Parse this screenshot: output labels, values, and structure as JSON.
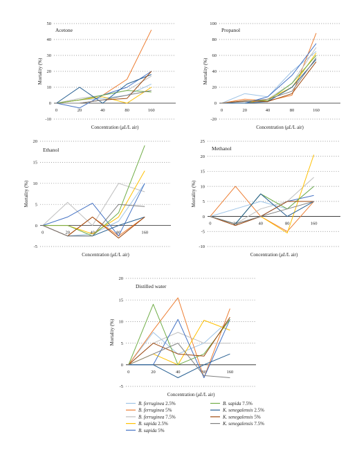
{
  "x_ticks": [
    0,
    20,
    40,
    80,
    160
  ],
  "colors": {
    "bf25": "#9dc3e6",
    "bf5": "#ed7d31",
    "bf75": "#bfbfbf",
    "bs25": "#ffc000",
    "bs5": "#4472c4",
    "bs75": "#70ad47",
    "ks25": "#255e91",
    "ks5": "#9e480e",
    "ks75": "#7f7f7f"
  },
  "legend": [
    {
      "key": "bf25",
      "name": "B. ferruginea",
      "dose": " 2.5%"
    },
    {
      "key": "bf5",
      "name": "B. ferruginea",
      "dose": " 5%"
    },
    {
      "key": "bf75",
      "name": "B. ferruginea",
      "dose": " 7.5%"
    },
    {
      "key": "bs25",
      "name": "B. sapida",
      "dose": " 2.5%"
    },
    {
      "key": "bs5",
      "name": "B. sapida",
      "dose": " 5%"
    },
    {
      "key": "bs75",
      "name": "B. sapida",
      "dose": " 7.5%"
    },
    {
      "key": "ks25",
      "name": "K. senegalensis",
      "dose": " 2.5%"
    },
    {
      "key": "ks5",
      "name": "K. senegalensis",
      "dose": " 5%"
    },
    {
      "key": "ks75",
      "name": "K. senegalensis",
      "dose": " 7.5%"
    }
  ],
  "chart_data": [
    {
      "type": "line",
      "title": "Acetone",
      "xlabel_pre": "Concentration (",
      "xlabel_unit": "μL",
      "xlabel_post": "/L air)",
      "ylabel": "Mortality (%)",
      "ylim": [
        -10,
        50
      ],
      "yticks": [
        -10,
        0,
        10,
        20,
        30,
        40,
        50
      ],
      "x": [
        0,
        20,
        40,
        80,
        160
      ],
      "series": [
        {
          "key": "bf25",
          "values": [
            0,
            2,
            3,
            5,
            12
          ]
        },
        {
          "key": "bf5",
          "values": [
            0,
            2,
            5,
            15,
            46
          ]
        },
        {
          "key": "bf75",
          "values": [
            0,
            3,
            5,
            8,
            17
          ]
        },
        {
          "key": "bs25",
          "values": [
            0,
            2,
            4,
            0,
            10
          ]
        },
        {
          "key": "bs5",
          "values": [
            0,
            -3,
            5,
            10,
            20
          ]
        },
        {
          "key": "bs75",
          "values": [
            0,
            2,
            5,
            8,
            7
          ]
        },
        {
          "key": "ks25",
          "values": [
            0,
            10,
            0,
            12,
            18
          ]
        },
        {
          "key": "ks5",
          "values": [
            0,
            0,
            2,
            3,
            20
          ]
        },
        {
          "key": "ks75",
          "values": [
            0,
            0,
            2,
            5,
            8
          ]
        }
      ]
    },
    {
      "type": "line",
      "title": "Propanol",
      "xlabel_pre": "Concentration (",
      "xlabel_unit": "μL",
      "xlabel_post": "/L air)",
      "ylabel": "Mortality (%)",
      "ylim": [
        -20,
        100
      ],
      "yticks": [
        -20,
        0,
        20,
        40,
        60,
        80,
        100
      ],
      "x": [
        0,
        20,
        40,
        80,
        160
      ],
      "series": [
        {
          "key": "bf25",
          "values": [
            0,
            12,
            8,
            40,
            65
          ]
        },
        {
          "key": "bf5",
          "values": [
            0,
            5,
            3,
            10,
            88
          ]
        },
        {
          "key": "bf75",
          "values": [
            0,
            0,
            5,
            25,
            70
          ]
        },
        {
          "key": "bs25",
          "values": [
            0,
            0,
            5,
            20,
            63
          ]
        },
        {
          "key": "bs5",
          "values": [
            0,
            0,
            8,
            35,
            75
          ]
        },
        {
          "key": "bs75",
          "values": [
            0,
            3,
            3,
            25,
            60
          ]
        },
        {
          "key": "ks25",
          "values": [
            0,
            0,
            2,
            20,
            55
          ]
        },
        {
          "key": "ks5",
          "values": [
            0,
            3,
            2,
            12,
            52
          ]
        },
        {
          "key": "ks75",
          "values": [
            0,
            2,
            5,
            15,
            57
          ]
        }
      ]
    },
    {
      "type": "line",
      "title": "Ethanol",
      "xlabel_pre": "Concentration (",
      "xlabel_unit": "μL",
      "xlabel_post": "/L air)",
      "ylabel": "Mortality (%)",
      "ylim": [
        -5,
        20
      ],
      "yticks": [
        -5,
        0,
        5,
        10,
        15,
        20
      ],
      "x": [
        0,
        20,
        40,
        80,
        160
      ],
      "series": [
        {
          "key": "bf25",
          "values": [
            0,
            -2.5,
            -2,
            1,
            10
          ]
        },
        {
          "key": "bf5",
          "values": [
            0,
            -2.5,
            2,
            -2.5,
            2
          ]
        },
        {
          "key": "bf75",
          "values": [
            0,
            5.5,
            0,
            10,
            8
          ]
        },
        {
          "key": "bs25",
          "values": [
            0,
            0,
            -2,
            2,
            13
          ]
        },
        {
          "key": "bs5",
          "values": [
            0,
            2,
            5.3,
            -2.5,
            10
          ]
        },
        {
          "key": "bs75",
          "values": [
            0,
            0,
            -2.5,
            3,
            19
          ]
        },
        {
          "key": "ks25",
          "values": [
            0,
            -2.5,
            -2.5,
            0,
            2
          ]
        },
        {
          "key": "ks5",
          "values": [
            0,
            -2.5,
            2,
            -3,
            2
          ]
        },
        {
          "key": "ks75",
          "values": [
            0,
            -2.5,
            -2.5,
            5,
            4.5
          ]
        }
      ]
    },
    {
      "type": "line",
      "title": "Methanol",
      "xlabel_pre": "Concentration (",
      "xlabel_unit": "μL",
      "xlabel_post": "/L air)",
      "ylabel": "Mortality (%)",
      "ylim": [
        -10,
        25
      ],
      "yticks": [
        -10,
        -5,
        0,
        5,
        10,
        15,
        20,
        25
      ],
      "x": [
        0,
        20,
        40,
        80,
        160
      ],
      "series": [
        {
          "key": "bf25",
          "values": [
            0,
            2.5,
            5,
            2.5,
            10
          ]
        },
        {
          "key": "bf5",
          "values": [
            0,
            10,
            0,
            -5,
            5
          ]
        },
        {
          "key": "bf75",
          "values": [
            0,
            -2.5,
            2.5,
            5,
            13
          ]
        },
        {
          "key": "bs25",
          "values": [
            0,
            -2.5,
            0,
            -5.5,
            20.5
          ]
        },
        {
          "key": "bs5",
          "values": [
            0,
            -2.5,
            0,
            5,
            7
          ]
        },
        {
          "key": "bs75",
          "values": [
            0,
            -2.5,
            7.5,
            2.5,
            10
          ]
        },
        {
          "key": "ks25",
          "values": [
            0,
            -2.5,
            7.5,
            0,
            5
          ]
        },
        {
          "key": "ks5",
          "values": [
            0,
            -3,
            0,
            5,
            5
          ]
        },
        {
          "key": "ks75",
          "values": [
            0,
            -2.5,
            0,
            2.5,
            5
          ]
        }
      ]
    },
    {
      "type": "line",
      "title": "Distilled water",
      "xlabel_pre": "Concentration (",
      "xlabel_unit": "μL",
      "xlabel_post": "/L air)",
      "ylabel": "Mortality (%)",
      "ylim": [
        -5,
        20
      ],
      "yticks": [
        -5,
        0,
        5,
        10,
        15,
        20
      ],
      "x": [
        0,
        20,
        40,
        80,
        160
      ],
      "series": [
        {
          "key": "bf25",
          "values": [
            0,
            7.5,
            2.5,
            5,
            10.5
          ]
        },
        {
          "key": "bf5",
          "values": [
            0,
            8,
            15.5,
            -3,
            13
          ]
        },
        {
          "key": "bf75",
          "values": [
            0,
            5,
            7.5,
            5,
            5
          ]
        },
        {
          "key": "bs25",
          "values": [
            0,
            2.5,
            0,
            10.3,
            8
          ]
        },
        {
          "key": "bs5",
          "values": [
            0,
            0,
            10.5,
            -3,
            10.5
          ]
        },
        {
          "key": "bs75",
          "values": [
            0,
            14,
            0,
            2.5,
            10.5
          ]
        },
        {
          "key": "ks25",
          "values": [
            0,
            0,
            -3,
            0,
            2.5
          ]
        },
        {
          "key": "ks5",
          "values": [
            0,
            5,
            2.5,
            2,
            11
          ]
        },
        {
          "key": "ks75",
          "values": [
            0,
            2.5,
            5,
            -2.5,
            -3
          ]
        }
      ]
    }
  ]
}
